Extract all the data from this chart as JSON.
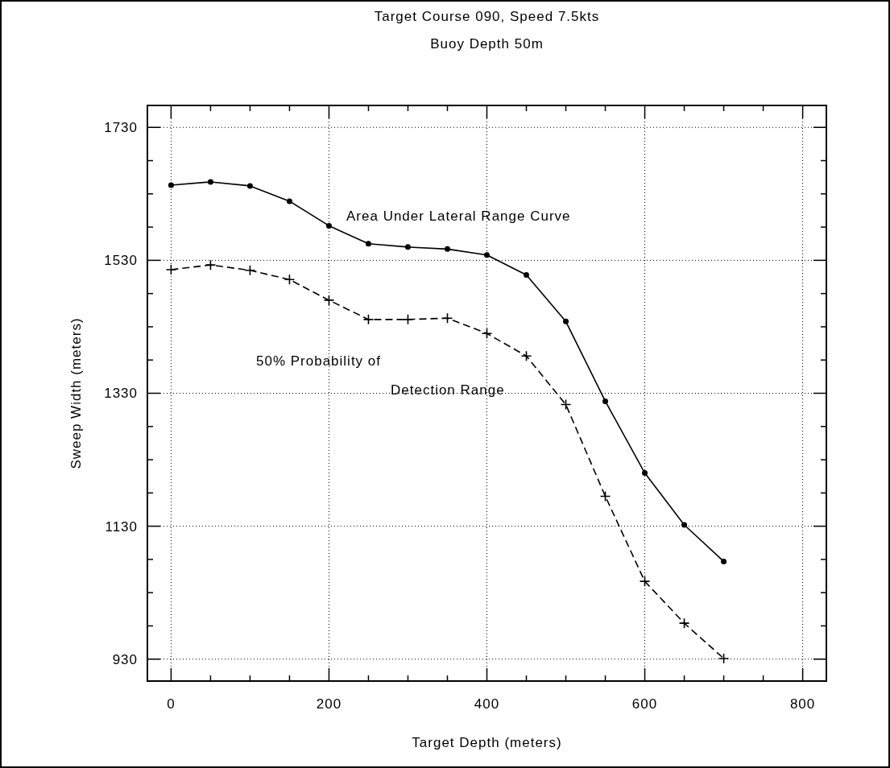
{
  "chart_data": {
    "type": "line",
    "title": "Target Course 090, Speed 7.5kts",
    "subtitle": "Buoy Depth 50m",
    "xlabel": "Target Depth (meters)",
    "ylabel": "Sweep Width (meters)",
    "x": [
      0,
      50,
      100,
      150,
      200,
      250,
      300,
      350,
      400,
      450,
      500,
      550,
      600,
      650,
      700
    ],
    "series": [
      {
        "color": "#000000",
        "marker": "circle",
        "line_style": "solid",
        "values": [
          1643,
          1648,
          1642,
          1619,
          1582,
          1555,
          1550,
          1547,
          1538,
          1508,
          1438,
          1318,
          1210,
          1132,
          1077
        ]
      },
      {
        "color": "#000000",
        "marker": "cross",
        "line_style": "dashed",
        "values": [
          1516,
          1523,
          1515,
          1501,
          1470,
          1441,
          1441,
          1443,
          1420,
          1386,
          1313,
          1175,
          1047,
          984,
          931
        ]
      }
    ],
    "annotations": [
      "Area Under Lateral Range Curve",
      "50% Probability of",
      "Detection Range"
    ],
    "xlim": [
      -30,
      830
    ],
    "ylim": [
      897,
      1763
    ],
    "xticks": [
      0,
      {
        "value": 50,
        "label": null
      },
      {
        "value": 100,
        "label": null
      },
      {
        "value": 150,
        "label": null
      },
      200,
      {
        "value": 250,
        "label": null
      },
      {
        "value": 300,
        "label": null
      },
      {
        "value": 350,
        "label": null
      },
      400,
      {
        "value": 450,
        "label": null
      },
      {
        "value": 500,
        "label": null
      },
      {
        "value": 550,
        "label": null
      },
      600,
      {
        "value": 650,
        "label": null
      },
      {
        "value": 700,
        "label": null
      },
      {
        "value": 750,
        "label": null
      },
      800
    ],
    "yticks": [
      930,
      {
        "value": 980,
        "label": null
      },
      {
        "value": 1030,
        "label": null
      },
      {
        "value": 1080,
        "label": null
      },
      1130,
      {
        "value": 1180,
        "label": null
      },
      {
        "value": 1230,
        "label": null
      },
      {
        "value": 1280,
        "label": null
      },
      1330,
      {
        "value": 1380,
        "label": null
      },
      {
        "value": 1430,
        "label": null
      },
      {
        "value": 1480,
        "label": null
      },
      1530,
      {
        "value": 1580,
        "label": null
      },
      {
        "value": 1630,
        "label": null
      },
      {
        "value": 1680,
        "label": null
      },
      1730
    ],
    "grid": true
  }
}
